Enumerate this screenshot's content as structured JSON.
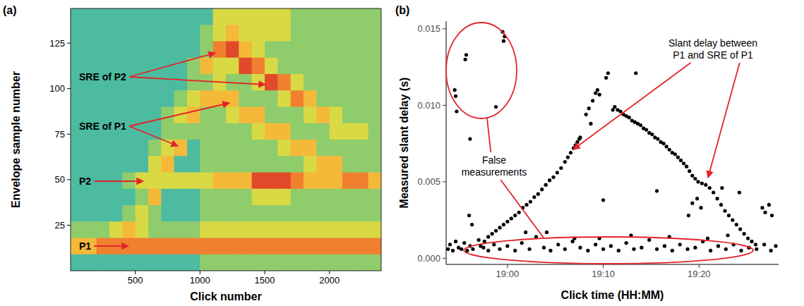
{
  "chart_data": [
    {
      "type": "heatmap",
      "panel": "(a)",
      "x_label": "Click number",
      "y_label": "Envelope sample number",
      "xlim": [
        0,
        2400
      ],
      "xticks": [
        500,
        1000,
        1500,
        2000
      ],
      "ylim": [
        0,
        144
      ],
      "yticks": [
        25,
        50,
        75,
        100,
        125
      ],
      "color_range": [
        0,
        9
      ],
      "cells": [
        [
          3,
          3,
          3,
          3,
          3,
          3,
          3,
          3,
          3,
          3,
          3,
          5,
          5,
          5,
          5,
          5,
          5,
          4,
          4,
          4,
          4,
          4,
          4,
          4
        ],
        [
          3,
          3,
          3,
          3,
          3,
          3,
          3,
          3,
          3,
          3,
          4,
          5,
          6,
          5,
          5,
          5,
          5,
          4,
          4,
          4,
          4,
          4,
          4,
          4
        ],
        [
          3,
          3,
          3,
          3,
          3,
          3,
          3,
          3,
          3,
          3,
          4,
          7,
          8,
          6,
          5,
          4,
          4,
          4,
          4,
          4,
          4,
          4,
          4,
          4
        ],
        [
          3,
          3,
          3,
          3,
          3,
          3,
          3,
          3,
          3,
          4,
          6,
          5,
          5,
          8,
          7,
          5,
          4,
          4,
          4,
          4,
          4,
          4,
          4,
          4
        ],
        [
          3,
          3,
          3,
          3,
          3,
          3,
          3,
          3,
          3,
          4,
          4,
          5,
          4,
          4,
          5,
          8,
          7,
          5,
          4,
          4,
          4,
          4,
          4,
          4
        ],
        [
          3,
          3,
          3,
          3,
          3,
          3,
          3,
          3,
          4,
          5,
          6,
          6,
          6,
          4,
          4,
          4,
          5,
          7,
          6,
          4,
          4,
          4,
          4,
          4
        ],
        [
          3,
          3,
          3,
          3,
          3,
          3,
          3,
          4,
          5,
          6,
          4,
          4,
          5,
          6,
          6,
          4,
          4,
          4,
          5,
          6,
          5,
          4,
          4,
          4
        ],
        [
          3,
          3,
          3,
          3,
          3,
          3,
          3,
          4,
          4,
          4,
          4,
          4,
          4,
          4,
          5,
          6,
          6,
          4,
          4,
          4,
          5,
          5,
          5,
          4
        ],
        [
          3,
          3,
          3,
          3,
          3,
          3,
          4,
          5,
          6,
          3,
          4,
          4,
          4,
          4,
          4,
          4,
          5,
          6,
          6,
          4,
          4,
          4,
          4,
          4
        ],
        [
          3,
          3,
          3,
          3,
          3,
          3,
          5,
          6,
          3,
          3,
          4,
          4,
          4,
          4,
          4,
          4,
          4,
          4,
          5,
          6,
          6,
          4,
          4,
          4
        ],
        [
          3,
          3,
          3,
          3,
          4,
          5,
          5,
          5,
          5,
          5,
          5,
          6,
          6,
          6,
          8,
          8,
          8,
          7,
          6,
          6,
          6,
          7,
          7,
          6
        ],
        [
          3,
          3,
          3,
          3,
          3,
          4,
          6,
          3,
          3,
          3,
          4,
          4,
          4,
          4,
          5,
          5,
          5,
          4,
          4,
          4,
          4,
          4,
          4,
          4
        ],
        [
          3,
          3,
          3,
          3,
          4,
          5,
          4,
          3,
          3,
          3,
          4,
          4,
          4,
          4,
          4,
          4,
          4,
          4,
          4,
          4,
          4,
          4,
          4,
          4
        ],
        [
          4,
          4,
          4,
          5,
          6,
          5,
          4,
          4,
          4,
          4,
          5,
          5,
          5,
          5,
          5,
          5,
          5,
          5,
          5,
          5,
          5,
          5,
          5,
          5
        ],
        [
          6,
          6,
          7,
          7,
          7,
          7,
          7,
          7,
          7,
          7,
          7,
          7,
          7,
          7,
          7,
          7,
          7,
          7,
          7,
          7,
          7,
          7,
          7,
          7
        ],
        [
          3,
          3,
          3,
          3,
          3,
          3,
          3,
          3,
          3,
          3,
          4,
          4,
          4,
          4,
          4,
          4,
          4,
          4,
          4,
          4,
          4,
          4,
          4,
          4
        ]
      ],
      "annotations": [
        {
          "text": "SRE of P2"
        },
        {
          "text": "SRE of P1"
        },
        {
          "text": "P2"
        },
        {
          "text": "P1"
        }
      ]
    },
    {
      "type": "scatter",
      "panel": "(b)",
      "x_label": "Click time (HH:MM)",
      "y_label": "Measured slant delay (s)",
      "color": "#000000",
      "marker": "circle",
      "xlim": [
        1133.6,
        1168.3
      ],
      "xticks": [
        {
          "value": 1140,
          "label": "19:00"
        },
        {
          "value": 1150,
          "label": "19:10"
        },
        {
          "value": 1160,
          "label": "19:20"
        }
      ],
      "ylim": [
        -0.0004,
        0.0155
      ],
      "yticks": [
        {
          "value": 0,
          "label": "0.000"
        },
        0.005,
        {
          "value": 0.01,
          "label": "0.010"
        },
        0.015
      ],
      "x": [
        1133.8,
        1134.0,
        1134.3,
        1134.6,
        1134.9,
        1135.2,
        1135.5,
        1135.8,
        1136.1,
        1136.4,
        1137.0,
        1137.5,
        1138.0,
        1138.6,
        1139.2,
        1140.0,
        1140.8,
        1141.5,
        1142.3,
        1143.0,
        1143.8,
        1144.5,
        1145.3,
        1146.0,
        1146.8,
        1147.6,
        1148.4,
        1149.2,
        1150.0,
        1150.8,
        1151.6,
        1152.4,
        1153.2,
        1154.0,
        1154.8,
        1155.6,
        1156.4,
        1157.2,
        1158.0,
        1158.8,
        1159.6,
        1160.4,
        1161.2,
        1162.0,
        1162.8,
        1163.6,
        1164.4,
        1165.2,
        1166.0,
        1166.8,
        1167.5,
        1168.0,
        1144.1,
        1147.0,
        1152.9,
        1156.9,
        1160.9,
        1141.9,
        1149.6,
        1163.0,
        1137.2,
        1137.6,
        1138.0,
        1138.4,
        1138.8,
        1139.2,
        1139.6,
        1140.0,
        1140.4,
        1140.8,
        1141.2,
        1141.6,
        1142.0,
        1142.4,
        1142.8,
        1143.2,
        1143.6,
        1144.0,
        1144.4,
        1144.8,
        1145.2,
        1145.6,
        1146.0,
        1146.3,
        1146.6,
        1146.9,
        1147.1,
        1147.3,
        1147.5,
        1147.6,
        1148.2,
        1148.5,
        1148.9,
        1149.2,
        1149.4,
        1149.6,
        1150.3,
        1150.5,
        1151.0,
        1148.7,
        1151.2,
        1151.5,
        1151.8,
        1152.1,
        1152.4,
        1152.7,
        1153.0,
        1153.3,
        1153.6,
        1153.9,
        1154.2,
        1154.5,
        1154.8,
        1155.1,
        1155.4,
        1155.7,
        1156.0,
        1156.3,
        1156.6,
        1156.9,
        1157.2,
        1157.5,
        1157.8,
        1158.1,
        1158.4,
        1158.7,
        1159.0,
        1159.3,
        1159.6,
        1159.9,
        1160.3,
        1160.7,
        1161.1,
        1161.5,
        1161.9,
        1162.3,
        1162.7,
        1163.1,
        1163.5,
        1163.9,
        1164.3,
        1164.7,
        1165.1,
        1165.5,
        1165.9,
        1134.5,
        1134.6,
        1134.7,
        1135.6,
        1135.7,
        1136.1,
        1138.8,
        1139.5,
        1139.6,
        1139.7,
        1136.0,
        1136.3,
        1150.0,
        1153.4,
        1155.6,
        1158.9,
        1159.3,
        1159.8,
        1160.2,
        1162.4,
        1164.2,
        1166.6,
        1166.9,
        1167.3,
        1167.6
      ],
      "values": [
        0.0006,
        0.0009,
        0.0005,
        0.0011,
        0.0007,
        0.0006,
        0.001,
        0.0005,
        0.0008,
        0.0006,
        0.0012,
        0.0007,
        0.0005,
        0.0009,
        0.0006,
        0.0008,
        0.0005,
        0.001,
        0.0006,
        0.0014,
        0.0007,
        0.0005,
        0.0009,
        0.0006,
        0.0011,
        0.0007,
        0.0005,
        0.0009,
        0.0006,
        0.0008,
        0.0005,
        0.001,
        0.0006,
        0.0007,
        0.0012,
        0.0006,
        0.0008,
        0.0005,
        0.0009,
        0.0006,
        0.0007,
        0.0011,
        0.0005,
        0.0008,
        0.0006,
        0.0009,
        0.0005,
        0.0007,
        0.0006,
        0.0009,
        0.0005,
        0.0008,
        0.0017,
        0.0013,
        0.0015,
        0.0014,
        0.0013,
        0.0017,
        0.0013,
        0.0015,
        0.0008,
        0.0011,
        0.0014,
        0.0016,
        0.0018,
        0.002,
        0.0022,
        0.0024,
        0.0026,
        0.0028,
        0.003,
        0.0033,
        0.0035,
        0.0037,
        0.004,
        0.0042,
        0.0045,
        0.0048,
        0.0051,
        0.0053,
        0.0056,
        0.0059,
        0.0063,
        0.0066,
        0.0069,
        0.0072,
        0.0074,
        0.0076,
        0.0078,
        0.0079,
        0.0094,
        0.0098,
        0.0103,
        0.0108,
        0.011,
        0.0107,
        0.0118,
        0.0121,
        0.0097,
        0.0088,
        0.0099,
        0.0097,
        0.0096,
        0.0094,
        0.0093,
        0.0092,
        0.009,
        0.0089,
        0.0088,
        0.0087,
        0.0085,
        0.0084,
        0.0082,
        0.0081,
        0.0079,
        0.0078,
        0.0076,
        0.0075,
        0.0073,
        0.0071,
        0.0069,
        0.0068,
        0.0066,
        0.0064,
        0.0062,
        0.006,
        0.0057,
        0.0054,
        0.0052,
        0.005,
        0.0049,
        0.0048,
        0.0046,
        0.0043,
        0.0039,
        0.0035,
        0.0031,
        0.0028,
        0.0025,
        0.0022,
        0.0019,
        0.0016,
        0.0013,
        0.0011,
        0.0009,
        0.011,
        0.0106,
        0.0096,
        0.013,
        0.0133,
        0.0078,
        0.0099,
        0.0148,
        0.0142,
        0.0145,
        0.0028,
        0.0022,
        0.0038,
        0.0121,
        0.0044,
        0.0028,
        0.0036,
        0.0039,
        0.0033,
        0.0046,
        0.0043,
        0.0033,
        0.003,
        0.0035,
        0.0028
      ],
      "annotations": [
        {
          "text": "Slant delay between P1 and SRE of P1"
        },
        {
          "text": "False measurements"
        }
      ]
    }
  ]
}
